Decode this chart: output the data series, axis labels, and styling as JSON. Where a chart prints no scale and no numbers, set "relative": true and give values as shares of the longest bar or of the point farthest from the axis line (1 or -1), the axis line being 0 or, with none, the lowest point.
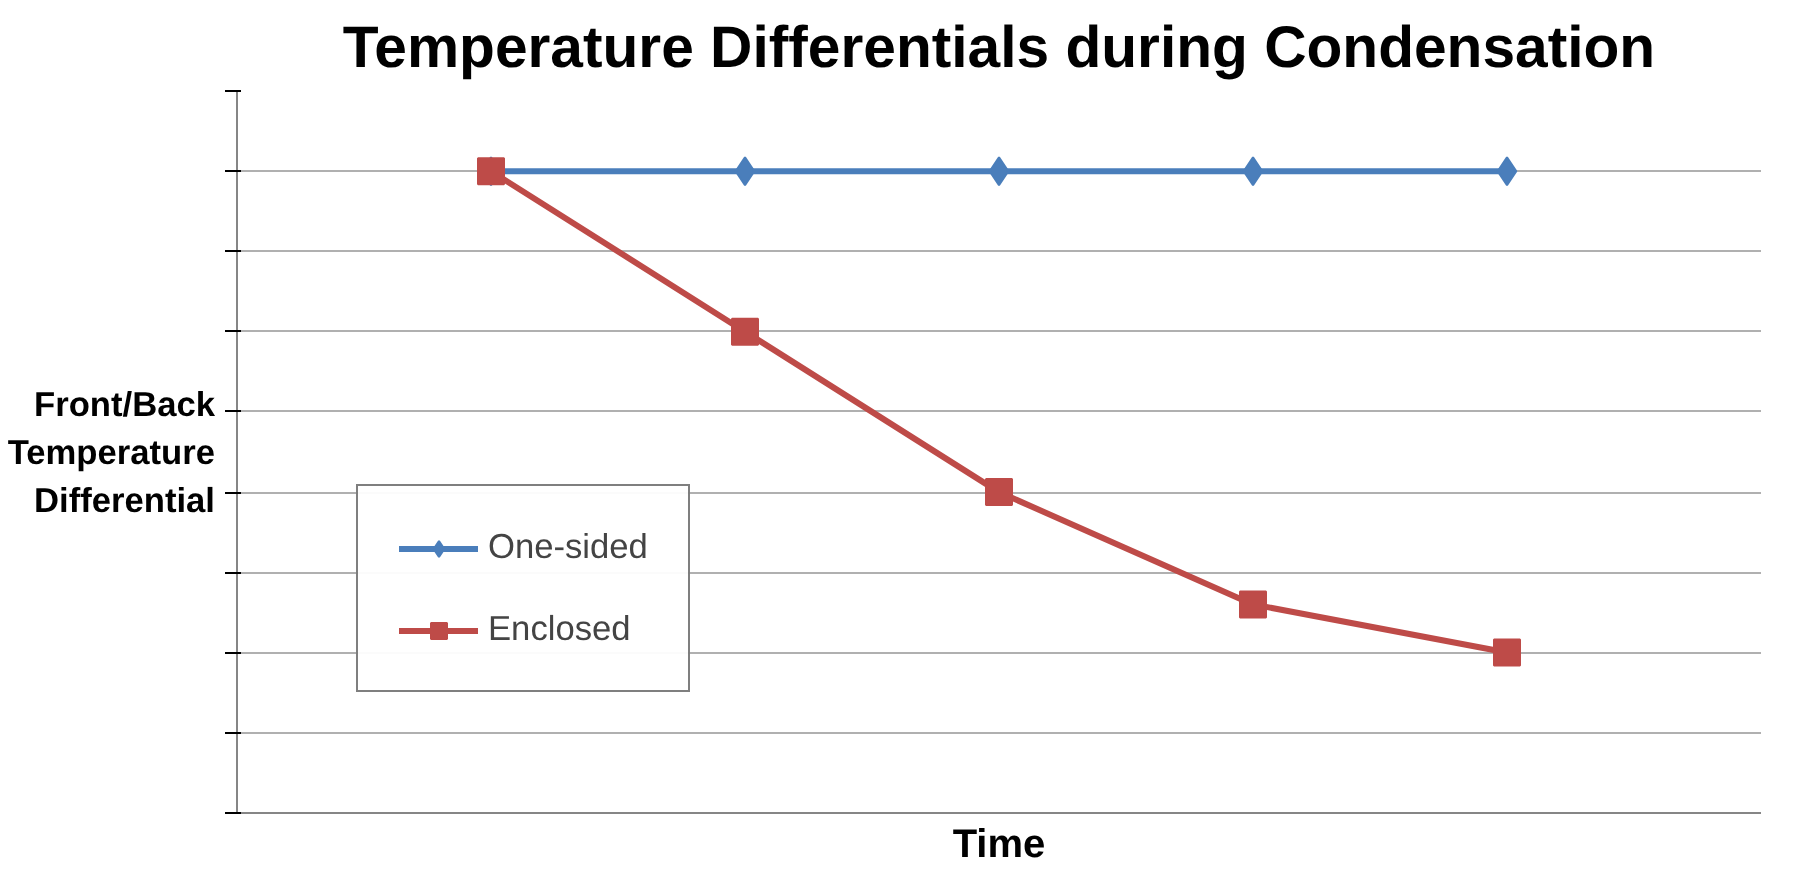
{
  "chart_data": {
    "type": "line",
    "title": "Temperature Differentials during Condensation",
    "xlabel": "Time",
    "ylabel": "Front/Back Temperature Differential",
    "relative": true,
    "categories": [
      null,
      null,
      null,
      null,
      null
    ],
    "series": [
      {
        "name": "One-sided",
        "color": "#4a7ebb",
        "marker": "diamond",
        "values": [
          1,
          1,
          1,
          1,
          1
        ]
      },
      {
        "name": "Enclosed",
        "color": "#be4b48",
        "marker": "square",
        "values": [
          1,
          0.75,
          0.5,
          0.325,
          0.25
        ]
      }
    ],
    "grid": "y",
    "legend": "bottom left"
  }
}
